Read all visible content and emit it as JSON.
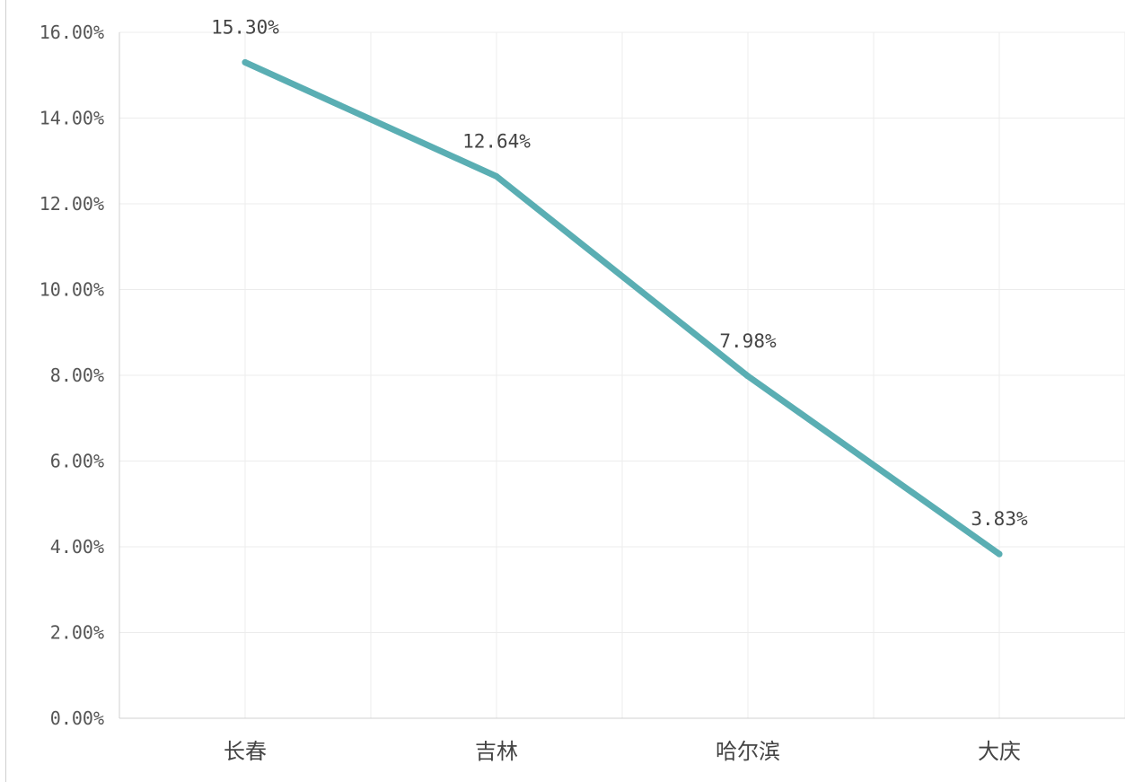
{
  "chart_data": {
    "type": "line",
    "categories": [
      "长春",
      "吉林",
      "哈尔滨",
      "大庆"
    ],
    "values": [
      15.3,
      12.64,
      7.98,
      3.83
    ],
    "data_labels": [
      "15.30%",
      "12.64%",
      "7.98%",
      "3.83%"
    ],
    "title": "",
    "xlabel": "",
    "ylabel": "",
    "ylim": [
      0,
      16
    ],
    "yticks": [
      0,
      2,
      4,
      6,
      8,
      10,
      12,
      14,
      16
    ],
    "ytick_labels": [
      "0.00%",
      "2.00%",
      "4.00%",
      "6.00%",
      "8.00%",
      "10.00%",
      "12.00%",
      "14.00%",
      "16.00%"
    ],
    "grid": true,
    "legend": "none",
    "colors": {
      "line": "#5aaeb3",
      "grid": "#ececec",
      "axis": "#d0d0d0"
    }
  }
}
